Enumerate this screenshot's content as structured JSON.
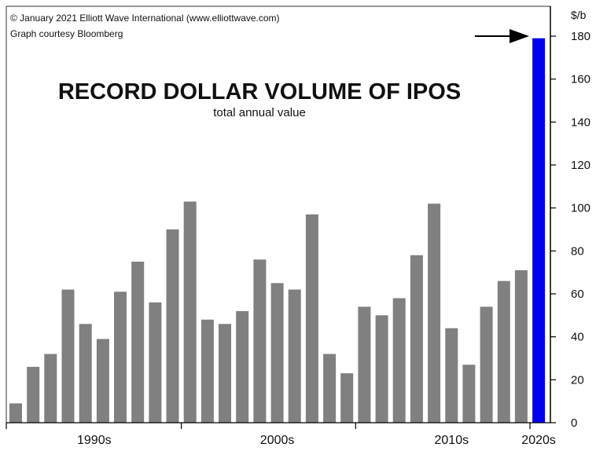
{
  "credit": {
    "line1": "© January 2021 Elliott Wave International (www.elliottwave.com)",
    "line2": "Graph courtesy Bloomberg"
  },
  "chart_data": {
    "type": "bar",
    "title": "RECORD DOLLAR VOLUME OF IPOS",
    "subtitle": "total annual value",
    "ylabel": "$/b",
    "ylim": [
      0,
      190
    ],
    "yticks": [
      0,
      20,
      40,
      60,
      80,
      100,
      120,
      140,
      160,
      180
    ],
    "y_axis_side": "right",
    "grid": false,
    "values": [
      9,
      26,
      32,
      62,
      46,
      39,
      61,
      75,
      56,
      90,
      103,
      48,
      46,
      52,
      76,
      65,
      62,
      97,
      32,
      23,
      54,
      50,
      58,
      78,
      102,
      44,
      27,
      54,
      66,
      71,
      179
    ],
    "highlight_index": 30,
    "decade_labels": [
      {
        "label": "1990s",
        "center_bar": 4.5
      },
      {
        "label": "2000s",
        "center_bar": 15
      },
      {
        "label": "2010s",
        "center_bar": 25
      },
      {
        "label": "2020s",
        "center_bar": 30
      }
    ],
    "decade_boundaries": [
      9.5,
      19.5,
      29.5
    ],
    "annotation": "arrow pointing to the highlighted bar"
  },
  "colors": {
    "bar": "#808080",
    "highlight": "#0000ee",
    "axis": "#000000",
    "text": "#111111"
  }
}
